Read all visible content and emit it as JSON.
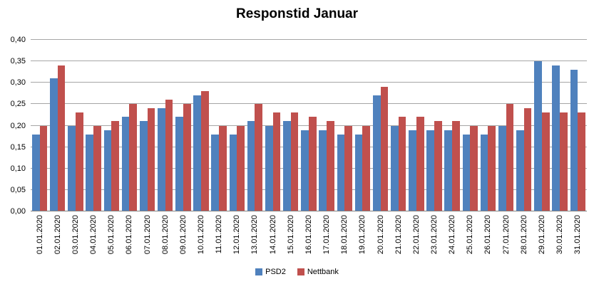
{
  "title": "Responstid Januar",
  "colors": {
    "psd2": "#4F81BD",
    "nettbank": "#C0504D",
    "gridline": "#A6A6A6",
    "axis_line": "#808080",
    "text": "#000000",
    "background": "#FFFFFF"
  },
  "chart_data": {
    "type": "bar",
    "title": "Responstid Januar",
    "categories": [
      "01.01.2020",
      "02.01.2020",
      "03.01.2020",
      "04.01.2020",
      "05.01.2020",
      "06.01.2020",
      "07.01.2020",
      "08.01.2020",
      "09.01.2020",
      "10.01.2020",
      "11.01.2020",
      "12.01.2020",
      "13.01.2020",
      "14.01.2020",
      "15.01.2020",
      "16.01.2020",
      "17.01.2020",
      "18.01.2020",
      "19.01.2020",
      "20.01.2020",
      "21.01.2020",
      "22.01.2020",
      "23.01.2020",
      "24.01.2020",
      "25.01.2020",
      "26.01.2020",
      "27.01.2020",
      "28.01.2020",
      "29.01.2020",
      "30.01.2020",
      "31.01.2020"
    ],
    "series": [
      {
        "name": "PSD2",
        "color": "#4F81BD",
        "values": [
          0.18,
          0.31,
          0.2,
          0.18,
          0.19,
          0.22,
          0.21,
          0.24,
          0.22,
          0.27,
          0.18,
          0.18,
          0.21,
          0.2,
          0.21,
          0.19,
          0.19,
          0.18,
          0.18,
          0.27,
          0.2,
          0.19,
          0.19,
          0.19,
          0.18,
          0.18,
          0.2,
          0.19,
          0.35,
          0.34,
          0.33
        ]
      },
      {
        "name": "Nettbank",
        "color": "#C0504D",
        "values": [
          0.2,
          0.34,
          0.23,
          0.2,
          0.21,
          0.25,
          0.24,
          0.26,
          0.25,
          0.28,
          0.2,
          0.2,
          0.25,
          0.23,
          0.23,
          0.22,
          0.21,
          0.2,
          0.2,
          0.29,
          0.22,
          0.22,
          0.21,
          0.21,
          0.2,
          0.2,
          0.25,
          0.24,
          0.23,
          0.23,
          0.23
        ]
      }
    ],
    "xlabel": "",
    "ylabel": "",
    "ylim": [
      0.0,
      0.4
    ],
    "ytick_step": 0.05,
    "ytick_labels": [
      "0,00",
      "0,05",
      "0,10",
      "0,15",
      "0,20",
      "0,25",
      "0,30",
      "0,35",
      "0,40"
    ],
    "grid": true,
    "legend_position": "bottom"
  }
}
